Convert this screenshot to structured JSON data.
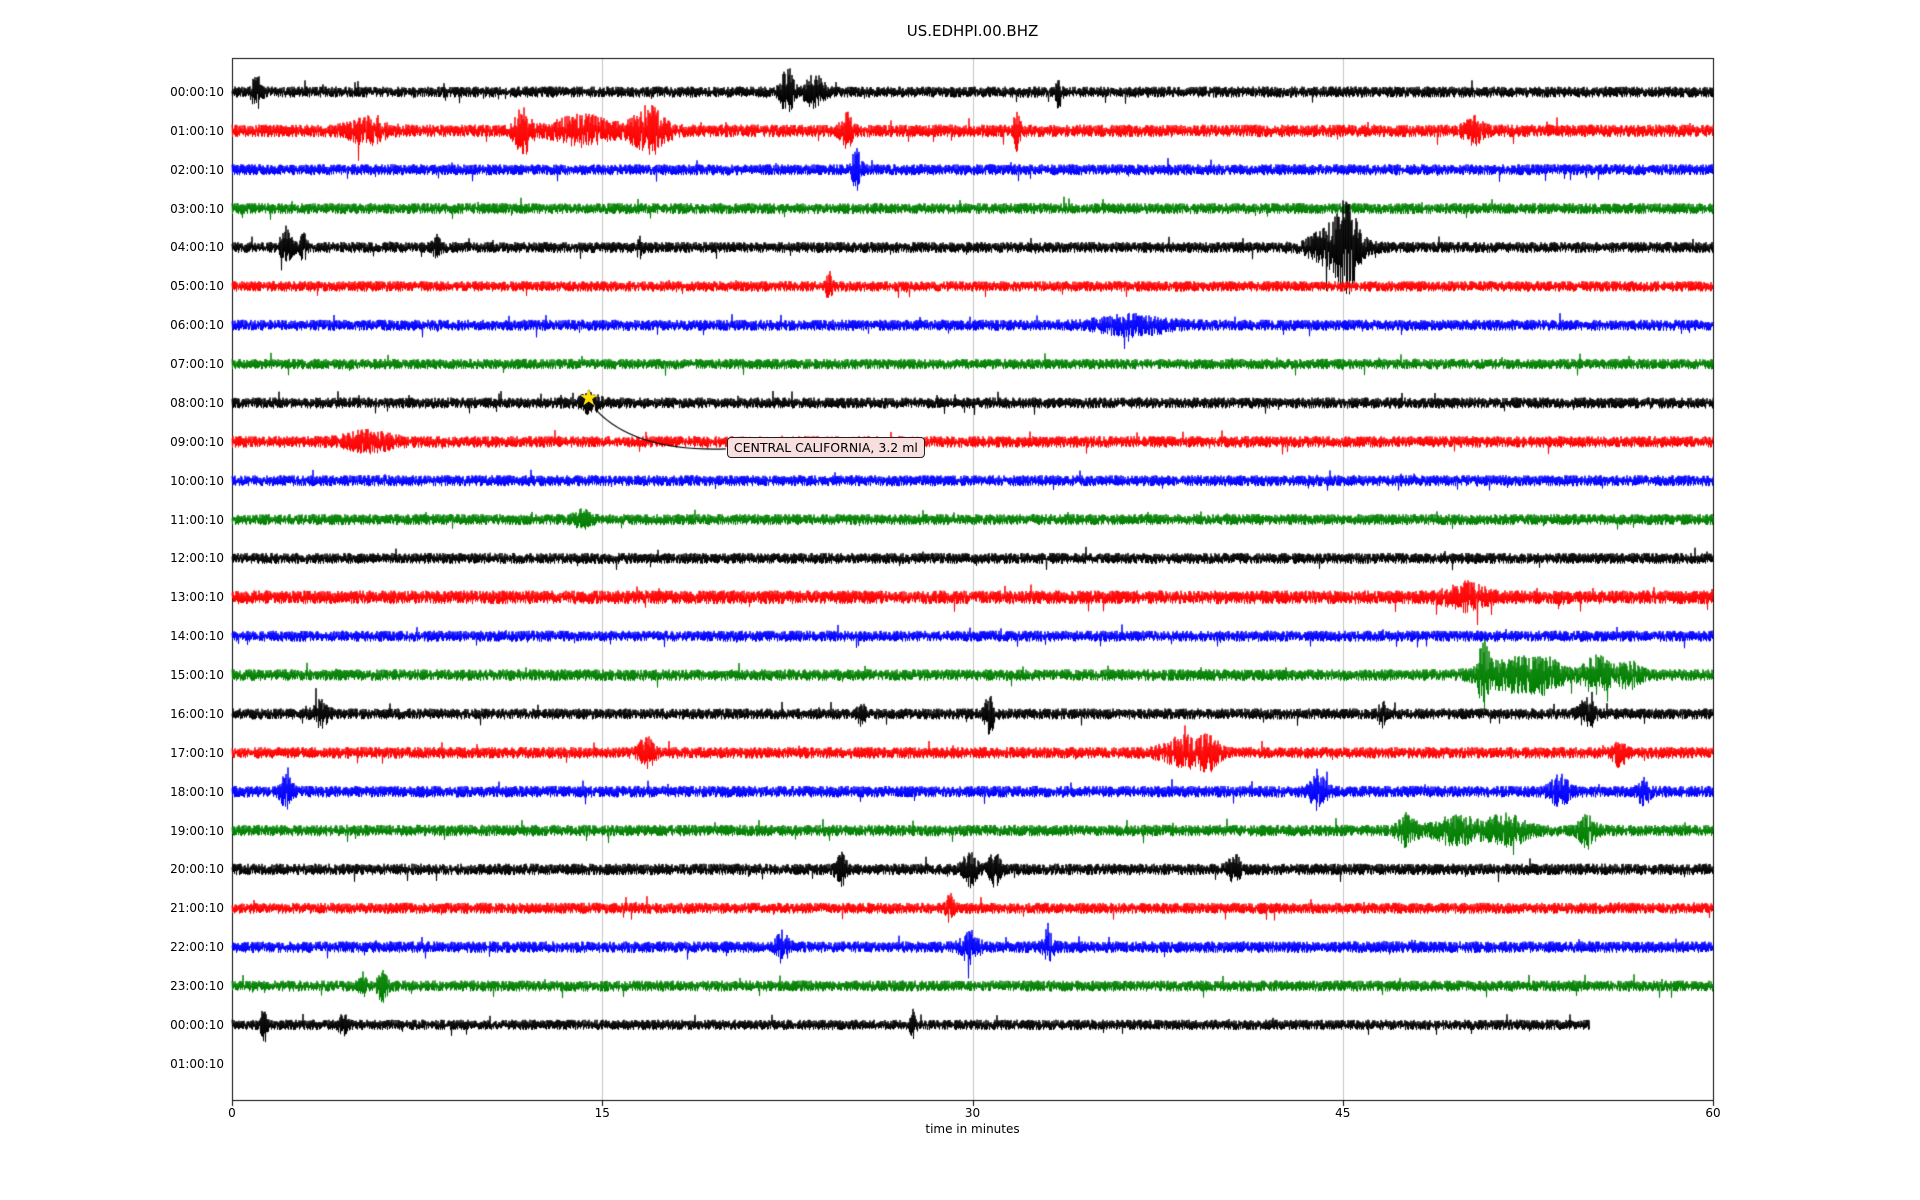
{
  "chart_data": {
    "type": "line",
    "title": "US.EDHPI.00.BHZ",
    "xlabel": "time in minutes",
    "xlim": [
      0,
      60
    ],
    "x_ticks": [
      0,
      15,
      30,
      45,
      60
    ],
    "grid": "vertical-only",
    "legend": "none",
    "colors": [
      "#000000",
      "#ff0000",
      "#0000ff",
      "#008000"
    ],
    "annotation": {
      "text": "CENTRAL CALIFORNIA, 3.2 ml",
      "row_label": "08:00:10",
      "x_minute": 14.5,
      "marker": "star",
      "marker_color": "#ffdf00"
    },
    "rows": [
      {
        "label": "00:00:10",
        "c": 0,
        "amp": 1.0,
        "end": 60,
        "ev": [
          [
            1.0,
            2.5,
            0.2
          ],
          [
            22.5,
            4.0,
            0.25
          ],
          [
            23.6,
            2.5,
            0.4
          ],
          [
            33.5,
            2.5,
            0.12
          ]
        ]
      },
      {
        "label": "01:00:10",
        "c": 1,
        "amp": 1.15,
        "end": 60,
        "ev": [
          [
            5.5,
            1.5,
            0.8
          ],
          [
            11.8,
            3.2,
            0.35
          ],
          [
            14.2,
            1.8,
            1.2
          ],
          [
            16.9,
            3.2,
            0.7
          ],
          [
            24.9,
            2.2,
            0.25
          ],
          [
            31.8,
            2.4,
            0.15
          ],
          [
            50.3,
            1.6,
            0.4
          ]
        ]
      },
      {
        "label": "02:00:10",
        "c": 2,
        "amp": 1.0,
        "end": 60,
        "ev": [
          [
            25.3,
            3.2,
            0.2
          ]
        ]
      },
      {
        "label": "03:00:10",
        "c": 3,
        "amp": 1.0,
        "end": 60,
        "ev": []
      },
      {
        "label": "04:00:10",
        "c": 0,
        "amp": 1.0,
        "end": 60,
        "ev": [
          [
            2.2,
            2.8,
            0.25
          ],
          [
            2.9,
            2.2,
            0.15
          ],
          [
            8.3,
            1.8,
            0.15
          ],
          [
            16.5,
            1.6,
            0.12
          ],
          [
            44.7,
            3.5,
            1.0
          ],
          [
            45.2,
            5.5,
            0.45
          ]
        ]
      },
      {
        "label": "05:00:10",
        "c": 1,
        "amp": 0.95,
        "end": 60,
        "ev": [
          [
            24.2,
            2.0,
            0.15
          ]
        ]
      },
      {
        "label": "06:00:10",
        "c": 2,
        "amp": 1.0,
        "end": 60,
        "ev": [
          [
            36.5,
            1.3,
            1.5
          ]
        ]
      },
      {
        "label": "07:00:10",
        "c": 3,
        "amp": 0.95,
        "end": 60,
        "ev": []
      },
      {
        "label": "08:00:10",
        "c": 0,
        "amp": 1.0,
        "end": 60,
        "ev": [
          [
            14.5,
            1.3,
            0.4
          ]
        ]
      },
      {
        "label": "09:00:10",
        "c": 1,
        "amp": 1.05,
        "end": 60,
        "ev": [
          [
            5.5,
            1.3,
            1.0
          ]
        ]
      },
      {
        "label": "10:00:10",
        "c": 2,
        "amp": 1.0,
        "end": 60,
        "ev": []
      },
      {
        "label": "11:00:10",
        "c": 3,
        "amp": 1.0,
        "end": 60,
        "ev": [
          [
            14.2,
            1.4,
            0.3
          ]
        ]
      },
      {
        "label": "12:00:10",
        "c": 0,
        "amp": 1.0,
        "end": 60,
        "ev": []
      },
      {
        "label": "13:00:10",
        "c": 1,
        "amp": 1.25,
        "end": 60,
        "ev": [
          [
            50.0,
            1.5,
            0.8
          ]
        ]
      },
      {
        "label": "14:00:10",
        "c": 2,
        "amp": 1.0,
        "end": 60,
        "ev": []
      },
      {
        "label": "15:00:10",
        "c": 3,
        "amp": 1.05,
        "end": 60,
        "ev": [
          [
            50.7,
            4.5,
            0.25
          ],
          [
            51.8,
            2.2,
            1.2
          ],
          [
            53.2,
            2.0,
            0.8
          ],
          [
            55.3,
            2.6,
            0.6
          ],
          [
            56.6,
            1.8,
            0.5
          ]
        ]
      },
      {
        "label": "16:00:10",
        "c": 0,
        "amp": 1.0,
        "end": 60,
        "ev": [
          [
            3.6,
            1.8,
            0.3
          ],
          [
            25.5,
            1.8,
            0.15
          ],
          [
            30.7,
            3.0,
            0.2
          ],
          [
            46.6,
            1.8,
            0.15
          ],
          [
            54.9,
            2.2,
            0.35
          ]
        ]
      },
      {
        "label": "17:00:10",
        "c": 1,
        "amp": 1.05,
        "end": 60,
        "ev": [
          [
            16.8,
            2.0,
            0.35
          ],
          [
            38.6,
            2.2,
            0.9
          ],
          [
            39.6,
            2.0,
            0.4
          ],
          [
            56.2,
            2.2,
            0.25
          ]
        ]
      },
      {
        "label": "18:00:10",
        "c": 2,
        "amp": 1.05,
        "end": 60,
        "ev": [
          [
            2.2,
            2.2,
            0.25
          ],
          [
            44.0,
            2.4,
            0.35
          ],
          [
            53.8,
            2.2,
            0.4
          ],
          [
            57.2,
            1.8,
            0.25
          ]
        ]
      },
      {
        "label": "19:00:10",
        "c": 3,
        "amp": 1.05,
        "end": 60,
        "ev": [
          [
            47.6,
            2.2,
            0.4
          ],
          [
            49.6,
            2.0,
            0.9
          ],
          [
            51.6,
            2.2,
            0.9
          ],
          [
            54.9,
            2.4,
            0.35
          ]
        ]
      },
      {
        "label": "20:00:10",
        "c": 0,
        "amp": 1.05,
        "end": 60,
        "ev": [
          [
            24.7,
            2.2,
            0.25
          ],
          [
            29.9,
            2.4,
            0.3
          ],
          [
            30.9,
            2.6,
            0.25
          ],
          [
            40.6,
            2.2,
            0.25
          ]
        ]
      },
      {
        "label": "21:00:10",
        "c": 1,
        "amp": 1.0,
        "end": 60,
        "ev": [
          [
            29.1,
            2.2,
            0.15
          ]
        ]
      },
      {
        "label": "22:00:10",
        "c": 2,
        "amp": 1.05,
        "end": 60,
        "ev": [
          [
            22.3,
            2.2,
            0.25
          ],
          [
            29.9,
            2.2,
            0.35
          ],
          [
            33.1,
            1.6,
            0.25
          ]
        ]
      },
      {
        "label": "23:00:10",
        "c": 3,
        "amp": 1.0,
        "end": 60,
        "ev": [
          [
            5.3,
            1.8,
            0.15
          ],
          [
            6.1,
            2.6,
            0.2
          ]
        ]
      },
      {
        "label": "00:00:10",
        "c": 0,
        "amp": 0.95,
        "end": 55,
        "ev": [
          [
            1.3,
            3.2,
            0.12
          ],
          [
            4.5,
            2.2,
            0.15
          ],
          [
            27.6,
            2.2,
            0.12
          ]
        ]
      },
      {
        "label": "01:00:10",
        "c": 0,
        "amp": 0,
        "end": 0,
        "ev": []
      }
    ]
  }
}
